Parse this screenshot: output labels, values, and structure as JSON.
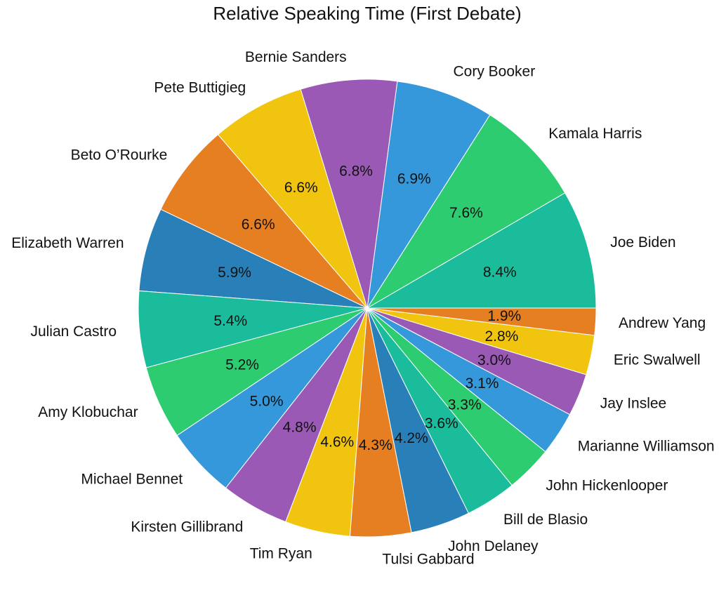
{
  "chart_data": {
    "type": "pie",
    "title": "Relative Speaking Time (First Debate)",
    "start": "counterclockwise from 3 o'clock",
    "slices": [
      {
        "label": "Joe Biden",
        "value": 8.4,
        "pct_label": "8.4%",
        "color": "#1abc9c"
      },
      {
        "label": "Kamala Harris",
        "value": 7.6,
        "pct_label": "7.6%",
        "color": "#2ecc71"
      },
      {
        "label": "Cory Booker",
        "value": 6.9,
        "pct_label": "6.9%",
        "color": "#3498db"
      },
      {
        "label": "Bernie Sanders",
        "value": 6.8,
        "pct_label": "6.8%",
        "color": "#9b59b6"
      },
      {
        "label": "Pete Buttigieg",
        "value": 6.6,
        "pct_label": "6.6%",
        "color": "#f1c40f"
      },
      {
        "label": "Beto O’Rourke",
        "value": 6.6,
        "pct_label": "6.6%",
        "color": "#e67e22"
      },
      {
        "label": "Elizabeth Warren",
        "value": 5.9,
        "pct_label": "5.9%",
        "color": "#2980b9"
      },
      {
        "label": "Julian Castro",
        "value": 5.4,
        "pct_label": "5.4%",
        "color": "#1abc9c"
      },
      {
        "label": "Amy Klobuchar",
        "value": 5.2,
        "pct_label": "5.2%",
        "color": "#2ecc71"
      },
      {
        "label": "Michael Bennet",
        "value": 5.0,
        "pct_label": "5.0%",
        "color": "#3498db"
      },
      {
        "label": "Kirsten Gillibrand",
        "value": 4.8,
        "pct_label": "4.8%",
        "color": "#9b59b6"
      },
      {
        "label": "Tim Ryan",
        "value": 4.6,
        "pct_label": "4.6%",
        "color": "#f1c40f"
      },
      {
        "label": "Tulsi Gabbard",
        "value": 4.3,
        "pct_label": "4.3%",
        "color": "#e67e22"
      },
      {
        "label": "John Delaney",
        "value": 4.2,
        "pct_label": "4.2%",
        "color": "#2980b9"
      },
      {
        "label": "Bill de Blasio",
        "value": 3.6,
        "pct_label": "3.6%",
        "color": "#1abc9c"
      },
      {
        "label": "John Hickenlooper",
        "value": 3.3,
        "pct_label": "3.3%",
        "color": "#2ecc71"
      },
      {
        "label": "Marianne Williamson",
        "value": 3.1,
        "pct_label": "3.1%",
        "color": "#3498db"
      },
      {
        "label": "Jay Inslee",
        "value": 3.0,
        "pct_label": "3.0%",
        "color": "#9b59b6"
      },
      {
        "label": "Eric Swalwell",
        "value": 2.8,
        "pct_label": "2.8%",
        "color": "#f1c40f"
      },
      {
        "label": "Andrew Yang",
        "value": 1.9,
        "pct_label": "1.9%",
        "color": "#e67e22"
      }
    ]
  }
}
